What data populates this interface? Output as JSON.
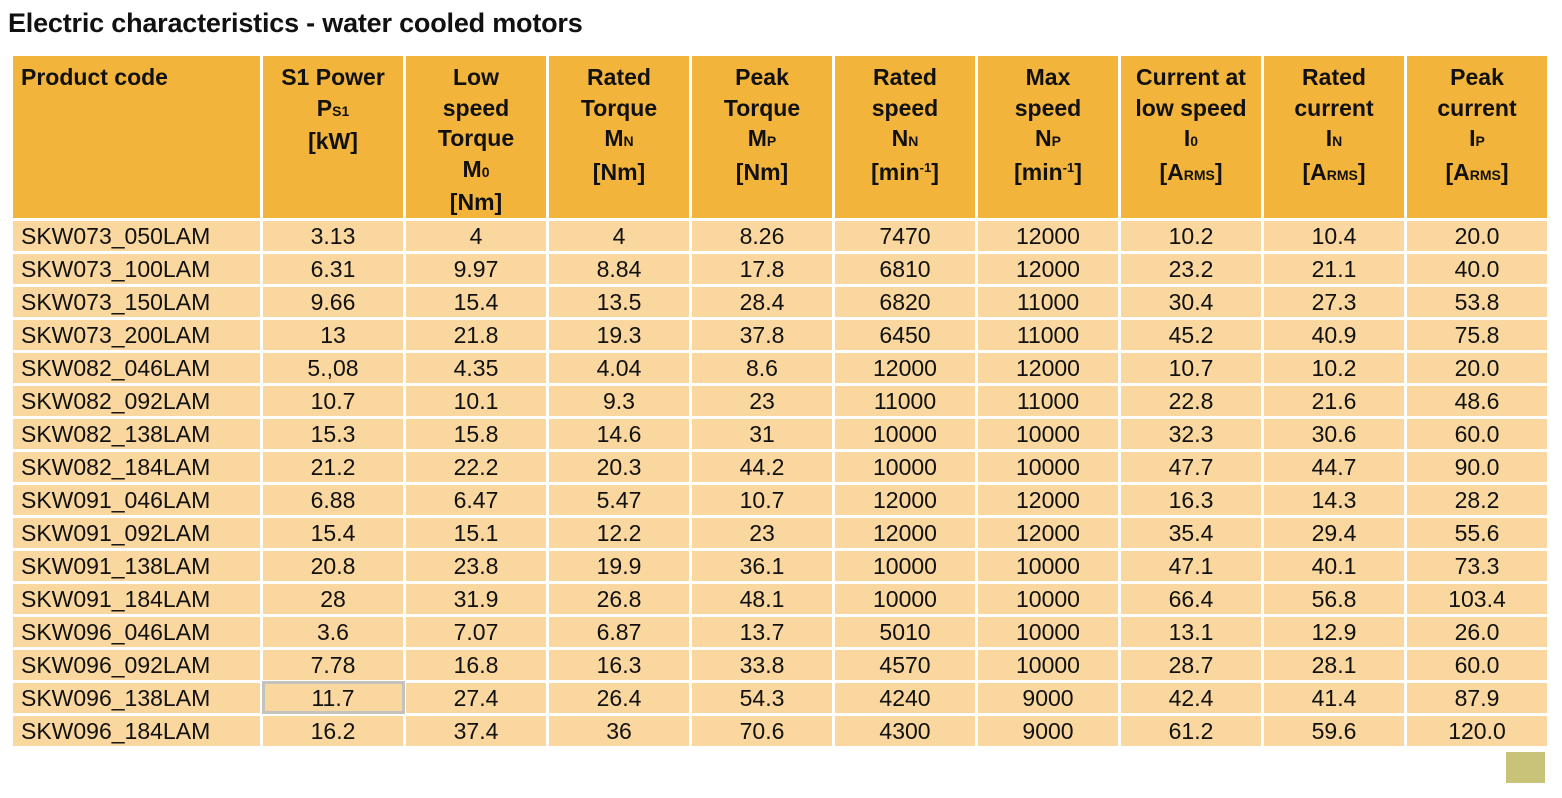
{
  "title": "Electric characteristics - water cooled motors",
  "columns": [
    {
      "lines": [
        "Product code"
      ]
    },
    {
      "lines": [
        "S1 Power",
        [
          "P",
          "S1",
          ""
        ],
        "[kW]"
      ]
    },
    {
      "lines": [
        "Low",
        "speed",
        "Torque",
        [
          "M",
          "0",
          ""
        ],
        "[Nm]"
      ]
    },
    {
      "lines": [
        "Rated",
        "Torque",
        [
          "M",
          "N",
          ""
        ],
        "[Nm]"
      ]
    },
    {
      "lines": [
        "Peak",
        "Torque",
        [
          "M",
          "P",
          ""
        ],
        "[Nm]"
      ]
    },
    {
      "lines": [
        "Rated",
        "speed",
        [
          "N",
          "N",
          ""
        ],
        [
          "[min",
          "-1",
          "]",
          "sup"
        ]
      ]
    },
    {
      "lines": [
        "Max",
        "speed",
        [
          "N",
          "P",
          ""
        ],
        [
          "[min",
          "-1",
          "]",
          "sup"
        ]
      ]
    },
    {
      "lines": [
        "Current at",
        "low speed",
        [
          "I",
          "0",
          ""
        ],
        [
          "[A",
          "RMS",
          "]"
        ]
      ]
    },
    {
      "lines": [
        "Rated",
        "current",
        [
          "I",
          "N",
          ""
        ],
        [
          "[A",
          "RMS",
          "]"
        ]
      ]
    },
    {
      "lines": [
        "Peak",
        "current",
        [
          "I",
          "P",
          ""
        ],
        [
          "[A",
          "RMS",
          "]"
        ]
      ]
    }
  ],
  "rows": [
    [
      "SKW073_050LAM",
      "3.13",
      "4",
      "4",
      "8.26",
      "7470",
      "12000",
      "10.2",
      "10.4",
      "20.0"
    ],
    [
      "SKW073_100LAM",
      "6.31",
      "9.97",
      "8.84",
      "17.8",
      "6810",
      "12000",
      "23.2",
      "21.1",
      "40.0"
    ],
    [
      "SKW073_150LAM",
      "9.66",
      "15.4",
      "13.5",
      "28.4",
      "6820",
      "11000",
      "30.4",
      "27.3",
      "53.8"
    ],
    [
      "SKW073_200LAM",
      "13",
      "21.8",
      "19.3",
      "37.8",
      "6450",
      "11000",
      "45.2",
      "40.9",
      "75.8"
    ],
    [
      "SKW082_046LAM",
      "5.,08",
      "4.35",
      "4.04",
      "8.6",
      "12000",
      "12000",
      "10.7",
      "10.2",
      "20.0"
    ],
    [
      "SKW082_092LAM",
      "10.7",
      "10.1",
      "9.3",
      "23",
      "11000",
      "11000",
      "22.8",
      "21.6",
      "48.6"
    ],
    [
      "SKW082_138LAM",
      "15.3",
      "15.8",
      "14.6",
      "31",
      "10000",
      "10000",
      "32.3",
      "30.6",
      "60.0"
    ],
    [
      "SKW082_184LAM",
      "21.2",
      "22.2",
      "20.3",
      "44.2",
      "10000",
      "10000",
      "47.7",
      "44.7",
      "90.0"
    ],
    [
      "SKW091_046LAM",
      "6.88",
      "6.47",
      "5.47",
      "10.7",
      "12000",
      "12000",
      "16.3",
      "14.3",
      "28.2"
    ],
    [
      "SKW091_092LAM",
      "15.4",
      "15.1",
      "12.2",
      "23",
      "12000",
      "12000",
      "35.4",
      "29.4",
      "55.6"
    ],
    [
      "SKW091_138LAM",
      "20.8",
      "23.8",
      "19.9",
      "36.1",
      "10000",
      "10000",
      "47.1",
      "40.1",
      "73.3"
    ],
    [
      "SKW091_184LAM",
      "28",
      "31.9",
      "26.8",
      "48.1",
      "10000",
      "10000",
      "66.4",
      "56.8",
      "103.4"
    ],
    [
      "SKW096_046LAM",
      "3.6",
      "7.07",
      "6.87",
      "13.7",
      "5010",
      "10000",
      "13.1",
      "12.9",
      "26.0"
    ],
    [
      "SKW096_092LAM",
      "7.78",
      "16.8",
      "16.3",
      "33.8",
      "4570",
      "10000",
      "28.7",
      "28.1",
      "60.0"
    ],
    [
      "SKW096_138LAM",
      "11.7",
      "27.4",
      "26.4",
      "54.3",
      "4240",
      "9000",
      "42.4",
      "41.4",
      "87.9"
    ],
    [
      "SKW096_184LAM",
      "16.2",
      "37.4",
      "36",
      "70.6",
      "4300",
      "9000",
      "61.2",
      "59.6",
      "120.0"
    ]
  ],
  "selected_cell": {
    "row": 14,
    "col": 1
  },
  "colors": {
    "header_bg": "#f2b43a",
    "row_bg": "#f9d79e",
    "grid": "#ffffff",
    "selection_border": "#c4c2bc",
    "marker": "#c9c37a"
  }
}
